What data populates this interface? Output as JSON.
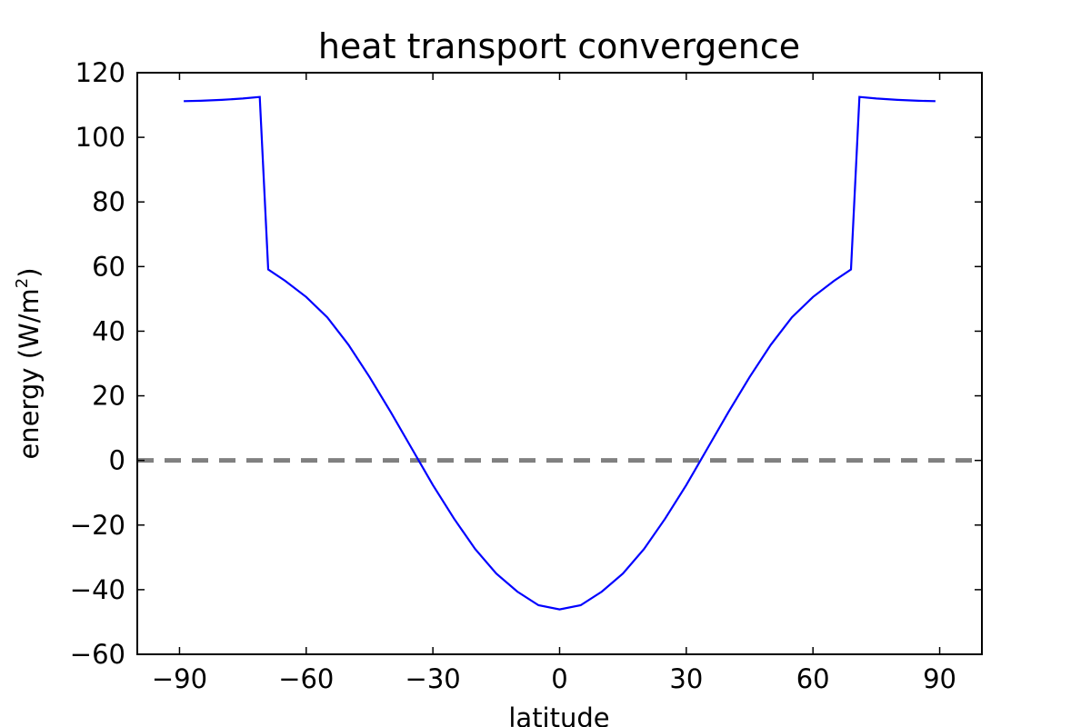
{
  "chart_data": {
    "type": "line",
    "title": "heat transport convergence",
    "xlabel": "latitude",
    "ylabel": "energy (W/m",
    "ylabel_sup": "2",
    "ylabel_end": ")",
    "xlim": [
      -100,
      100
    ],
    "ylim": [
      -60,
      120
    ],
    "xticks": [
      -90,
      -60,
      -30,
      0,
      30,
      60,
      90
    ],
    "yticks": [
      -60,
      -40,
      -20,
      0,
      20,
      40,
      60,
      80,
      100,
      120
    ],
    "xtick_labels": [
      "−90",
      "−60",
      "−30",
      "0",
      "30",
      "60",
      "90"
    ],
    "ytick_labels": [
      "−60",
      "−40",
      "−20",
      "0",
      "20",
      "40",
      "60",
      "80",
      "100",
      "120"
    ],
    "grid": false,
    "series": [
      {
        "color": "#0000ff",
        "x": [
          -89,
          -85,
          -80,
          -75,
          -71,
          -69,
          -65,
          -60,
          -55,
          -50,
          -45,
          -40,
          -35,
          -30,
          -25,
          -20,
          -15,
          -10,
          -5,
          0,
          5,
          10,
          15,
          20,
          25,
          30,
          35,
          40,
          45,
          50,
          55,
          60,
          65,
          69,
          71,
          75,
          80,
          85,
          89
        ],
        "y": [
          111.2,
          111.3,
          111.6,
          112.0,
          112.5,
          59.1,
          55.6,
          50.6,
          44.3,
          35.8,
          25.8,
          15.0,
          3.7,
          -7.6,
          -18.0,
          -27.4,
          -35.0,
          -40.6,
          -44.8,
          -46.1,
          -44.8,
          -40.6,
          -35.0,
          -27.4,
          -18.0,
          -7.6,
          3.7,
          15.0,
          25.8,
          35.8,
          44.3,
          50.6,
          55.6,
          59.1,
          112.5,
          112.0,
          111.6,
          111.3,
          111.2
        ]
      }
    ],
    "reference_line": {
      "y": 0,
      "style": "dashed",
      "color": "#808080"
    }
  }
}
